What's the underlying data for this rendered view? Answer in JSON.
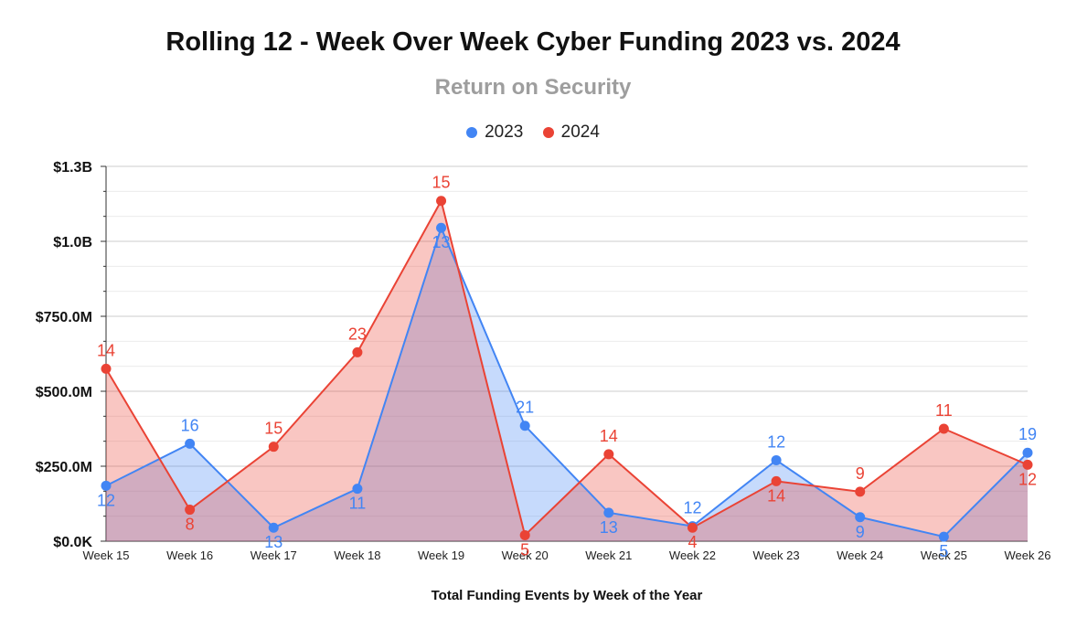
{
  "chart_data": {
    "type": "area",
    "title": "Rolling 12 - Week Over Week Cyber Funding 2023 vs. 2024",
    "subtitle": "Return on Security",
    "xlabel": "Total Funding Events by Week of the Year",
    "ylabel": "",
    "categories": [
      "Week 15",
      "Week 16",
      "Week 17",
      "Week 18",
      "Week 19",
      "Week 20",
      "Week 21",
      "Week 22",
      "Week 23",
      "Week 24",
      "Week 25",
      "Week 26"
    ],
    "ylim": [
      0,
      1250000000
    ],
    "y_ticks": [
      {
        "value": 0,
        "label": "$0.0K"
      },
      {
        "value": 250000000,
        "label": "$250.0M"
      },
      {
        "value": 500000000,
        "label": "$500.0M"
      },
      {
        "value": 750000000,
        "label": "$750.0M"
      },
      {
        "value": 1000000000,
        "label": "$1.0B"
      },
      {
        "value": 1250000000,
        "label": "$1.3B"
      }
    ],
    "grid": true,
    "legend_position": "top-center",
    "series": [
      {
        "name": "2023",
        "color": "#4285f4",
        "values": [
          185000000,
          325000000,
          45000000,
          175000000,
          1045000000,
          385000000,
          95000000,
          50000000,
          270000000,
          80000000,
          15000000,
          295000000
        ],
        "labels": [
          "12",
          "16",
          "13",
          "11",
          "13",
          "21",
          "13",
          "12",
          "12",
          "9",
          "5",
          "19"
        ]
      },
      {
        "name": "2024",
        "color": "#ea4335",
        "values": [
          575000000,
          105000000,
          315000000,
          630000000,
          1135000000,
          20000000,
          290000000,
          45000000,
          200000000,
          165000000,
          375000000,
          255000000
        ],
        "labels": [
          "14",
          "8",
          "15",
          "23",
          "15",
          "5",
          "14",
          "4",
          "14",
          "9",
          "11",
          "12"
        ]
      }
    ]
  }
}
